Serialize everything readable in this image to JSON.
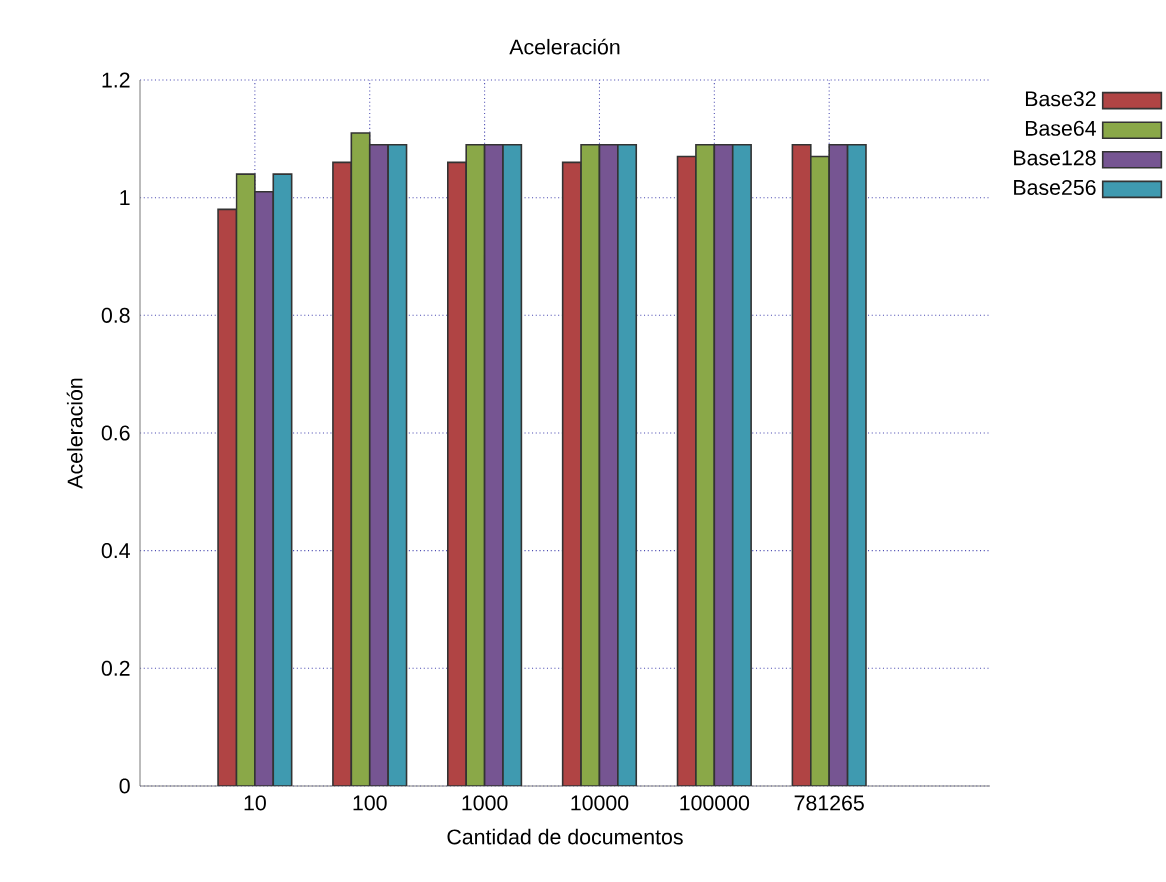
{
  "chart_data": {
    "type": "bar",
    "title": "Aceleración",
    "xlabel": "Cantidad de documentos",
    "ylabel": "Aceleración",
    "categories": [
      "10",
      "100",
      "1000",
      "10000",
      "100000",
      "781265"
    ],
    "series": [
      {
        "name": "Base32",
        "color": "#b04444",
        "values": [
          0.98,
          1.06,
          1.06,
          1.06,
          1.07,
          1.09
        ]
      },
      {
        "name": "Base64",
        "color": "#8aa848",
        "values": [
          1.04,
          1.11,
          1.09,
          1.09,
          1.09,
          1.07
        ]
      },
      {
        "name": "Base128",
        "color": "#765592",
        "values": [
          1.01,
          1.09,
          1.09,
          1.09,
          1.09,
          1.09
        ]
      },
      {
        "name": "Base256",
        "color": "#3f9ab0",
        "values": [
          1.04,
          1.09,
          1.09,
          1.09,
          1.09,
          1.09
        ]
      }
    ],
    "ylim": [
      0,
      1.2
    ],
    "yticks": [
      0,
      0.2,
      0.4,
      0.6,
      0.8,
      1,
      1.2
    ],
    "grid": true,
    "legend": "top right"
  }
}
